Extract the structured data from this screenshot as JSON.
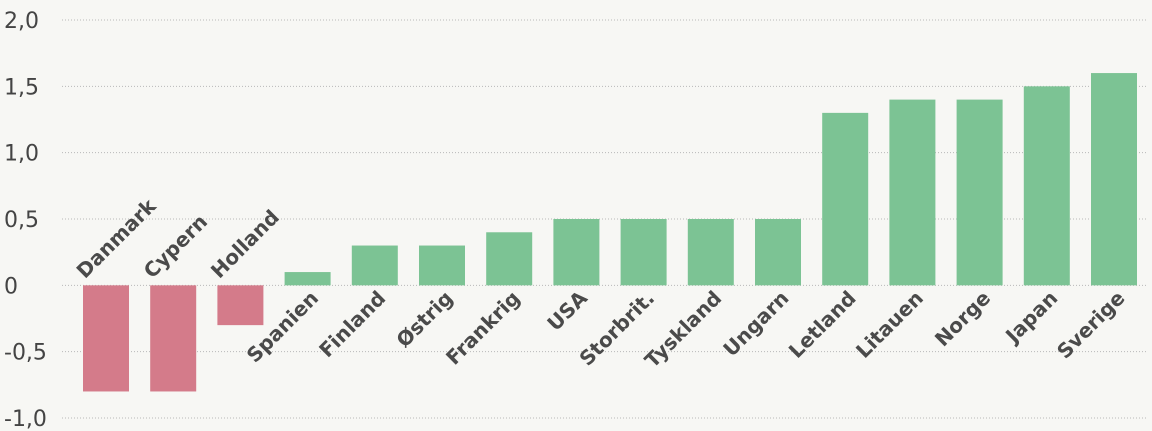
{
  "chart_data": {
    "type": "bar",
    "categories": [
      "Danmark",
      "Cypern",
      "Holland",
      "Spanien",
      "Finland",
      "Østrig",
      "Frankrig",
      "USA",
      "Storbrit.",
      "Tyskland",
      "Ungarn",
      "Letland",
      "Litauen",
      "Norge",
      "Japan",
      "Sverige"
    ],
    "values": [
      -0.8,
      -0.8,
      -0.3,
      0.1,
      0.3,
      0.3,
      0.4,
      0.5,
      0.5,
      0.5,
      0.5,
      1.3,
      1.4,
      1.4,
      1.5,
      1.6
    ],
    "title": "",
    "xlabel": "",
    "ylabel": "",
    "ylim": [
      -1.0,
      2.0
    ],
    "yticks": [
      2.0,
      1.5,
      1.0,
      0.5,
      0,
      -0.5,
      -1.0
    ],
    "ytick_labels": [
      "2,0",
      "1,5",
      "1,0",
      "0,5",
      "0",
      "-0,5",
      "-1,0"
    ],
    "grid": true,
    "colors": {
      "positive": "#7cc394",
      "negative": "#d47b8a"
    }
  }
}
